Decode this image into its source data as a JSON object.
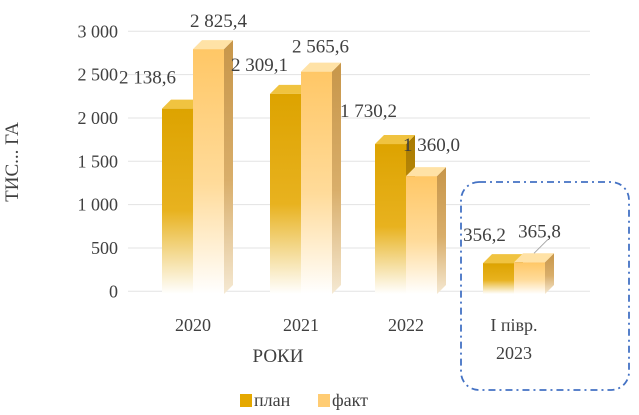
{
  "chart_data": {
    "type": "bar",
    "style": "3d-clustered-column",
    "categories": [
      "2020",
      "2021",
      "2022",
      "I півр. 2023"
    ],
    "series": [
      {
        "name": "план",
        "values": [
          2138.6,
          2309.1,
          1730.2,
          356.2
        ],
        "color": "#E5A800"
      },
      {
        "name": "факт",
        "values": [
          2825.4,
          2565.6,
          1360.0,
          365.8
        ],
        "color": "#FFCC73"
      }
    ],
    "data_labels": {
      "план": [
        "2 138,6",
        "2 309,1",
        "1 730,2",
        "356,2"
      ],
      "факт": [
        "2 825,4",
        "2 565,6",
        "1 360,0",
        "365,8"
      ]
    },
    "y_ticks": [
      "0",
      "500",
      "1 000",
      "1 500",
      "2 000",
      "2 500",
      "3 000"
    ],
    "y_tick_values": [
      0,
      500,
      1000,
      1500,
      2000,
      2500,
      3000
    ],
    "ylim": [
      0,
      3000
    ],
    "xlabel": "РОКИ",
    "ylabel": "ТИС... ГА",
    "grid": true,
    "legend_position": "bottom",
    "highlight_box_color": "#4472C4"
  }
}
